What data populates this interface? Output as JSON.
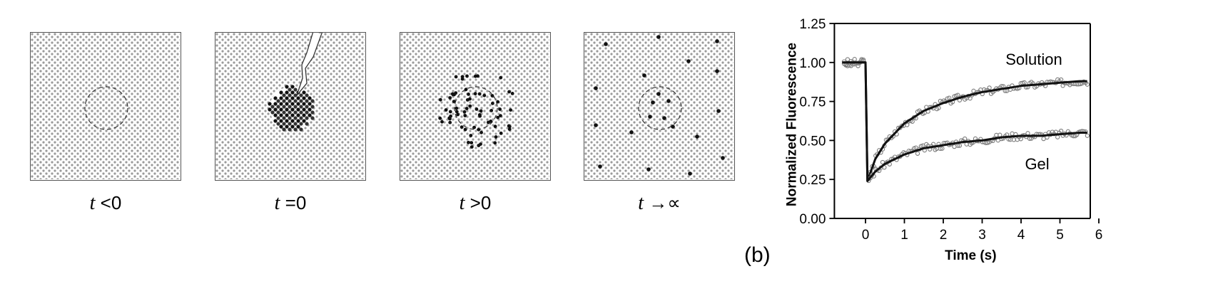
{
  "panels": [
    {
      "time_symbol": "t",
      "relation": "<0"
    },
    {
      "time_symbol": "t",
      "relation": "=0"
    },
    {
      "time_symbol": "t",
      "relation": ">0"
    },
    {
      "time_symbol": "t",
      "relation": "→∝"
    }
  ],
  "panel_tag": "(b)",
  "chart_data": {
    "type": "scatter",
    "title": "",
    "xlabel": "Time (s)",
    "ylabel": "Normalized Fluorescence",
    "xlim": [
      -0.8,
      6
    ],
    "ylim": [
      0,
      1.25
    ],
    "x_ticks": [
      "0",
      "1",
      "2",
      "3",
      "4",
      "5",
      "6"
    ],
    "y_ticks": [
      "0.00",
      "0.25",
      "0.50",
      "0.75",
      "1.00",
      "1.25"
    ],
    "grid": false,
    "series": [
      {
        "name": "Solution",
        "x": [
          -0.6,
          -0.3,
          0.0,
          0.05,
          0.25,
          0.5,
          1.0,
          1.5,
          2.0,
          2.5,
          3.0,
          3.5,
          4.0,
          4.5,
          5.0,
          5.5,
          5.7
        ],
        "y": [
          1.0,
          1.0,
          1.0,
          0.24,
          0.38,
          0.48,
          0.61,
          0.69,
          0.74,
          0.78,
          0.81,
          0.83,
          0.85,
          0.86,
          0.87,
          0.88,
          0.88
        ]
      },
      {
        "name": "Gel",
        "x": [
          -0.6,
          -0.3,
          0.0,
          0.05,
          0.25,
          0.5,
          1.0,
          1.5,
          2.0,
          2.5,
          3.0,
          3.5,
          4.0,
          4.5,
          5.0,
          5.5,
          5.7
        ],
        "y": [
          1.0,
          1.0,
          1.0,
          0.24,
          0.3,
          0.35,
          0.41,
          0.45,
          0.47,
          0.49,
          0.5,
          0.52,
          0.53,
          0.53,
          0.54,
          0.55,
          0.55
        ]
      }
    ],
    "annotations": [
      "Solution",
      "Gel"
    ]
  },
  "colors": {
    "pattern_dot": "#9a9a9a",
    "marker": "#7a7a7a",
    "fit_line": "#111111"
  }
}
